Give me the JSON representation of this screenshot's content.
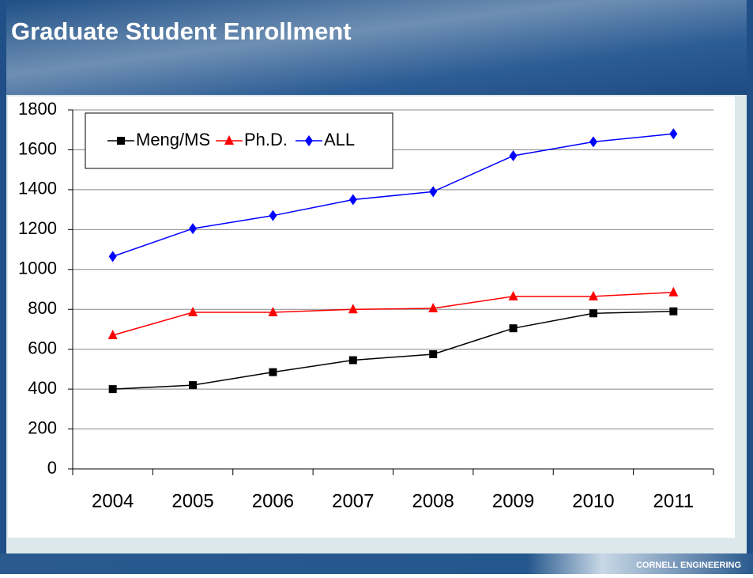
{
  "header": {
    "title": "Graduate Student Enrollment"
  },
  "chart_data": {
    "type": "line",
    "categories": [
      "2004",
      "2005",
      "2006",
      "2007",
      "2008",
      "2009",
      "2010",
      "2011"
    ],
    "series": [
      {
        "name": "Meng/MS",
        "color": "#000000",
        "marker": "square",
        "values": [
          400,
          420,
          485,
          545,
          575,
          705,
          780,
          790
        ]
      },
      {
        "name": "Ph.D.",
        "color": "#ff0000",
        "marker": "triangle",
        "values": [
          670,
          785,
          785,
          800,
          805,
          865,
          865,
          885
        ]
      },
      {
        "name": "ALL",
        "color": "#0000ff",
        "marker": "diamond",
        "values": [
          1065,
          1205,
          1270,
          1350,
          1390,
          1570,
          1640,
          1680
        ]
      }
    ],
    "ylim": [
      0,
      1800
    ],
    "yticks": [
      0,
      200,
      400,
      600,
      800,
      1000,
      1200,
      1400,
      1600,
      1800
    ],
    "grid": true,
    "legend": "top-left"
  },
  "footer": {
    "brand": "CORNELL ENGINEERING"
  }
}
